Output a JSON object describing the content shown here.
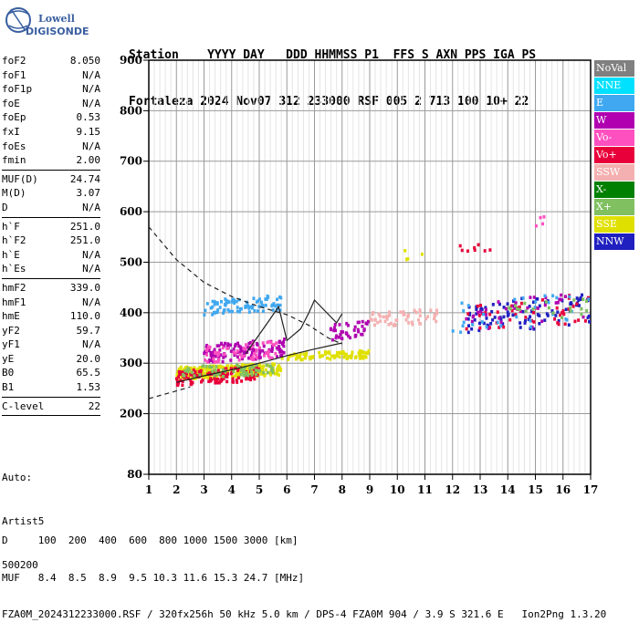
{
  "logo": {
    "line1": "Lowell",
    "line2": "DIGISONDE"
  },
  "header": {
    "line1": "Station    YYYY DAY   DDD HHMMSS P1  FFS S AXN PPS IGA PS",
    "line2": "Fortaleza 2024 Nov07 312 233000 RSF 005 2 713 100 10+ 22"
  },
  "params": [
    {
      "label": "foF2",
      "value": "8.050"
    },
    {
      "label": "foF1",
      "value": "N/A"
    },
    {
      "label": "foF1p",
      "value": "N/A"
    },
    {
      "label": "foE",
      "value": "N/A"
    },
    {
      "label": "foEp",
      "value": "0.53"
    },
    {
      "label": "fxI",
      "value": "9.15"
    },
    {
      "label": "foEs",
      "value": "N/A"
    },
    {
      "label": "fmin",
      "value": "2.00"
    },
    {
      "sep": true
    },
    {
      "label": "MUF(D)",
      "value": "24.74"
    },
    {
      "label": "M(D)",
      "value": "3.07"
    },
    {
      "label": "D",
      "value": "N/A"
    },
    {
      "sep": true
    },
    {
      "label": "h`F",
      "value": "251.0"
    },
    {
      "label": "h`F2",
      "value": "251.0"
    },
    {
      "label": "h`E",
      "value": "N/A"
    },
    {
      "label": "h`Es",
      "value": "N/A"
    },
    {
      "sep": true
    },
    {
      "label": "hmF2",
      "value": "339.0"
    },
    {
      "label": "hmF1",
      "value": "N/A"
    },
    {
      "label": "hmE",
      "value": "110.0"
    },
    {
      "label": "yF2",
      "value": "59.7"
    },
    {
      "label": "yF1",
      "value": "N/A"
    },
    {
      "label": "yE",
      "value": "20.0"
    },
    {
      "label": "B0",
      "value": "65.5"
    },
    {
      "label": "B1",
      "value": "1.53"
    },
    {
      "sep": true
    },
    {
      "label": "C-level",
      "value": "22"
    },
    {
      "sep": true
    }
  ],
  "auto": {
    "line1": "Auto:",
    "line2": "Artist5",
    "line3": "500200"
  },
  "footer": {
    "d_line": "D     100  200  400  600  800 1000 1500 3000 [km]",
    "muf_line": "MUF   8.4  8.5  8.9  9.5 10.3 11.6 15.3 24.7 [MHz]",
    "info_line": "FZA0M_2024312233000.RSF / 320fx256h 50 kHz 5.0 km / DPS-4 FZA0M 904 / 3.9 S 321.6 E   Ion2Png 1.3.20"
  },
  "legend": [
    {
      "label": "NoVal",
      "color": "#808080"
    },
    {
      "label": "NNE",
      "color": "#00e0ff"
    },
    {
      "label": "E",
      "color": "#40a8f0"
    },
    {
      "label": "W",
      "color": "#b000b0"
    },
    {
      "label": "Vo-",
      "color": "#ff50c0"
    },
    {
      "label": "Vo+",
      "color": "#e8003a"
    },
    {
      "label": "SSW",
      "color": "#f4b0b0"
    },
    {
      "label": "X-",
      "color": "#008000"
    },
    {
      "label": "X+",
      "color": "#80c060"
    },
    {
      "label": "SSE",
      "color": "#e0e000"
    },
    {
      "label": "NNW",
      "color": "#2020c0"
    }
  ],
  "chart_data": {
    "type": "scatter",
    "xlabel": "",
    "ylabel": "",
    "xlim": [
      1,
      17
    ],
    "ylim": [
      80,
      900
    ],
    "x_ticks": [
      1,
      2,
      3,
      4,
      5,
      6,
      7,
      8,
      9,
      10,
      11,
      12,
      13,
      14,
      15,
      16,
      17
    ],
    "y_ticks": [
      80,
      200,
      300,
      400,
      500,
      600,
      700,
      800,
      900
    ],
    "grid": true,
    "minor_x_step": 0.2,
    "clusters": [
      {
        "series": "SSE",
        "f": [
          2.0,
          5.8
        ],
        "h": [
          268,
          300
        ],
        "n": 260
      },
      {
        "series": "SSE",
        "f": [
          5.8,
          9.0
        ],
        "h": [
          305,
          325
        ],
        "n": 90
      },
      {
        "series": "Vo+",
        "f": [
          2.0,
          5.0
        ],
        "h": [
          255,
          295
        ],
        "n": 120
      },
      {
        "series": "W",
        "f": [
          3.0,
          6.0
        ],
        "h": [
          300,
          350
        ],
        "n": 120
      },
      {
        "series": "Vo-",
        "f": [
          3.0,
          5.8
        ],
        "h": [
          300,
          345
        ],
        "n": 60
      },
      {
        "series": "X+",
        "f": [
          2.0,
          5.5
        ],
        "h": [
          270,
          300
        ],
        "n": 60
      },
      {
        "series": "E",
        "f": [
          3.0,
          5.8
        ],
        "h": [
          395,
          435
        ],
        "n": 85
      },
      {
        "series": "W",
        "f": [
          7.5,
          9.0
        ],
        "h": [
          345,
          385
        ],
        "n": 40
      },
      {
        "series": "SSW",
        "f": [
          9.0,
          11.5
        ],
        "h": [
          370,
          410
        ],
        "n": 55
      },
      {
        "series": "NNW",
        "f": [
          12.5,
          17.0
        ],
        "h": [
          355,
          440
        ],
        "n": 90
      },
      {
        "series": "Vo+",
        "f": [
          12.5,
          17.0
        ],
        "h": [
          360,
          440
        ],
        "n": 45
      },
      {
        "series": "W",
        "f": [
          12.5,
          17.0
        ],
        "h": [
          360,
          440
        ],
        "n": 35
      },
      {
        "series": "E",
        "f": [
          12.0,
          17.0
        ],
        "h": [
          360,
          440
        ],
        "n": 30
      },
      {
        "series": "X+",
        "f": [
          14.0,
          17.0
        ],
        "h": [
          380,
          430
        ],
        "n": 20
      },
      {
        "series": "Vo+",
        "f": [
          12.0,
          13.5
        ],
        "h": [
          510,
          540
        ],
        "n": 8
      },
      {
        "series": "SSE",
        "f": [
          10.0,
          11.0
        ],
        "h": [
          500,
          550
        ],
        "n": 4
      },
      {
        "series": "Vo-",
        "f": [
          15.0,
          15.4
        ],
        "h": [
          555,
          600
        ],
        "n": 4
      }
    ],
    "lines": [
      {
        "name": "profile",
        "style": "dashed",
        "points": [
          [
            1.0,
            570
          ],
          [
            2.0,
            505
          ],
          [
            3.0,
            460
          ],
          [
            4.0,
            432
          ],
          [
            5.0,
            412
          ],
          [
            6.0,
            396
          ],
          [
            6.8,
            375
          ],
          [
            7.5,
            350
          ],
          [
            8.0,
            338
          ]
        ]
      },
      {
        "name": "trace-o",
        "style": "solid",
        "points": [
          [
            2.0,
            262
          ],
          [
            3.0,
            275
          ],
          [
            4.0,
            287
          ],
          [
            5.0,
            300
          ],
          [
            6.0,
            315
          ],
          [
            7.0,
            328
          ],
          [
            8.0,
            340
          ]
        ]
      },
      {
        "name": "trace-low",
        "style": "dashed",
        "points": [
          [
            1.0,
            230
          ],
          [
            2.0,
            245
          ],
          [
            2.5,
            253
          ]
        ]
      },
      {
        "name": "trace-x",
        "style": "solid",
        "points": [
          [
            4.5,
            318
          ],
          [
            5.3,
            380
          ],
          [
            5.7,
            412
          ],
          [
            6.0,
            345
          ],
          [
            6.5,
            368
          ],
          [
            6.8,
            400
          ],
          [
            7.0,
            425
          ],
          [
            7.8,
            380
          ],
          [
            8.0,
            398
          ]
        ]
      }
    ]
  }
}
